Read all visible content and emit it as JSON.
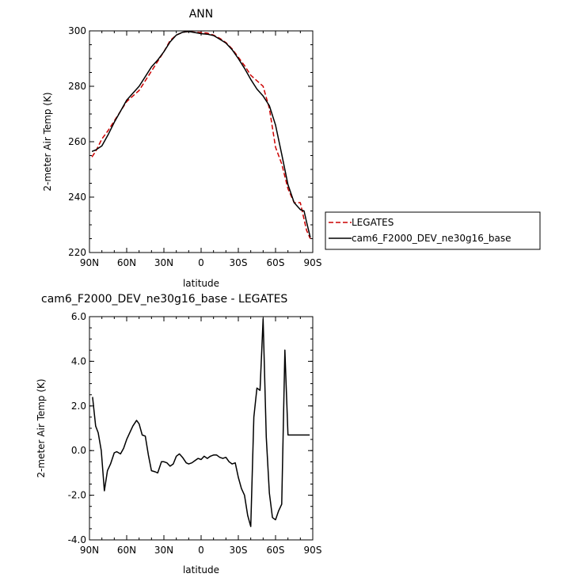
{
  "chart_data": [
    {
      "type": "line",
      "title": "ANN",
      "xlabel": "latitude",
      "ylabel": "2-meter Air Temp (K)",
      "xlim": [
        90,
        -90
      ],
      "ylim": [
        220,
        300
      ],
      "xticks": [
        90,
        60,
        30,
        0,
        -30,
        -60,
        -90
      ],
      "xtick_labels": [
        "90N",
        "60N",
        "30N",
        "0",
        "30S",
        "60S",
        "90S"
      ],
      "yticks": [
        220,
        240,
        260,
        280,
        300
      ],
      "ytick_labels": [
        "220",
        "240",
        "260",
        "280",
        "300"
      ],
      "legend_position": "right",
      "series": [
        {
          "name": "LEGATES",
          "color": "#cc0000",
          "dash": "dashed",
          "x": [
            88,
            85,
            80,
            75,
            70,
            65,
            60,
            55,
            50,
            45,
            40,
            35,
            30,
            25,
            20,
            15,
            10,
            5,
            0,
            -5,
            -10,
            -15,
            -20,
            -25,
            -30,
            -35,
            -40,
            -45,
            -50,
            -55,
            -60,
            -65,
            -70,
            -75,
            -80,
            -83,
            -85,
            -88
          ],
          "y": [
            254.5,
            256.5,
            261,
            264,
            267.5,
            271,
            274.5,
            276.5,
            278.5,
            282,
            285.5,
            289,
            292.5,
            296.5,
            298.5,
            299.5,
            299.8,
            299.5,
            299.4,
            299.2,
            298.5,
            297.3,
            295.8,
            293.5,
            290.5,
            287.5,
            284,
            282,
            280,
            272,
            258,
            252,
            243,
            238,
            238,
            232,
            228,
            225
          ]
        },
        {
          "name": "cam6_F2000_DEV_ne30g16_base",
          "color": "#000000",
          "dash": "solid",
          "x": [
            88,
            85,
            80,
            75,
            70,
            65,
            60,
            55,
            50,
            45,
            40,
            35,
            30,
            25,
            20,
            15,
            10,
            5,
            0,
            -5,
            -10,
            -15,
            -20,
            -25,
            -30,
            -35,
            -40,
            -45,
            -50,
            -55,
            -60,
            -65,
            -70,
            -75,
            -80,
            -83,
            -85,
            -88
          ],
          "y": [
            256.5,
            257,
            258.5,
            262.5,
            267,
            271,
            275,
            277.5,
            280,
            283.5,
            287,
            289.5,
            292.5,
            296,
            298.5,
            299.5,
            299.8,
            299.4,
            299,
            298.8,
            298.3,
            297,
            295.6,
            293.2,
            290,
            286.5,
            282.5,
            279,
            276.5,
            273,
            266,
            255.5,
            244.5,
            238,
            235.5,
            235,
            231,
            225.5
          ]
        }
      ]
    },
    {
      "type": "line",
      "title": "cam6_F2000_DEV_ne30g16_base - LEGATES",
      "xlabel": "latitude",
      "ylabel": "2-meter Air Temp (K)",
      "xlim": [
        90,
        -90
      ],
      "ylim": [
        -4,
        6
      ],
      "xticks": [
        90,
        60,
        30,
        0,
        -30,
        -60,
        -90
      ],
      "xtick_labels": [
        "90N",
        "60N",
        "30N",
        "0",
        "30S",
        "60S",
        "90S"
      ],
      "yticks": [
        -4,
        -2,
        0,
        2,
        4,
        6
      ],
      "ytick_labels": [
        "-4.0",
        "-2.0",
        "0.0",
        "2.0",
        "4.0",
        "6.0"
      ],
      "series": [
        {
          "color": "#000000",
          "x": [
            87.5,
            85,
            83,
            80.5,
            78,
            75.5,
            73,
            70,
            68,
            65,
            62.5,
            60,
            57.5,
            55,
            52,
            50,
            47.5,
            45,
            42.5,
            40,
            37,
            35,
            32,
            30,
            27.5,
            25,
            22.5,
            20,
            17.5,
            15,
            12,
            10,
            7.5,
            5,
            2.5,
            0,
            -2.5,
            -5,
            -7.5,
            -10,
            -12.5,
            -15,
            -17.5,
            -20,
            -22.5,
            -25,
            -27.5,
            -30,
            -32.5,
            -35,
            -37.5,
            -40,
            -42.5,
            -45,
            -47.5,
            -50,
            -52.5,
            -55,
            -57.5,
            -60,
            -62.5,
            -65,
            -67.5,
            -70,
            -72.5,
            -75,
            -77.5,
            -80,
            -82.5,
            -85,
            -87.5
          ],
          "y": [
            2.4,
            1.1,
            0.8,
            0.0,
            -1.8,
            -0.9,
            -0.6,
            -0.1,
            -0.05,
            -0.15,
            0.1,
            0.5,
            0.8,
            1.1,
            1.35,
            1.2,
            0.7,
            0.65,
            -0.2,
            -0.9,
            -0.95,
            -1.0,
            -0.5,
            -0.5,
            -0.55,
            -0.7,
            -0.6,
            -0.25,
            -0.15,
            -0.3,
            -0.55,
            -0.6,
            -0.55,
            -0.45,
            -0.35,
            -0.4,
            -0.25,
            -0.35,
            -0.25,
            -0.2,
            -0.2,
            -0.3,
            -0.35,
            -0.3,
            -0.5,
            -0.6,
            -0.55,
            -1.2,
            -1.7,
            -2.0,
            -2.9,
            -3.4,
            1.5,
            2.8,
            2.7,
            5.9,
            0.6,
            -1.9,
            -3.0,
            -3.1,
            -2.7,
            -2.4,
            4.5,
            0.7,
            0.7,
            0.7,
            0.7,
            0.7,
            0.7,
            0.7,
            0.7
          ]
        }
      ]
    }
  ],
  "legend": {
    "entries": [
      "LEGATES",
      "cam6_F2000_DEV_ne30g16_base"
    ]
  }
}
